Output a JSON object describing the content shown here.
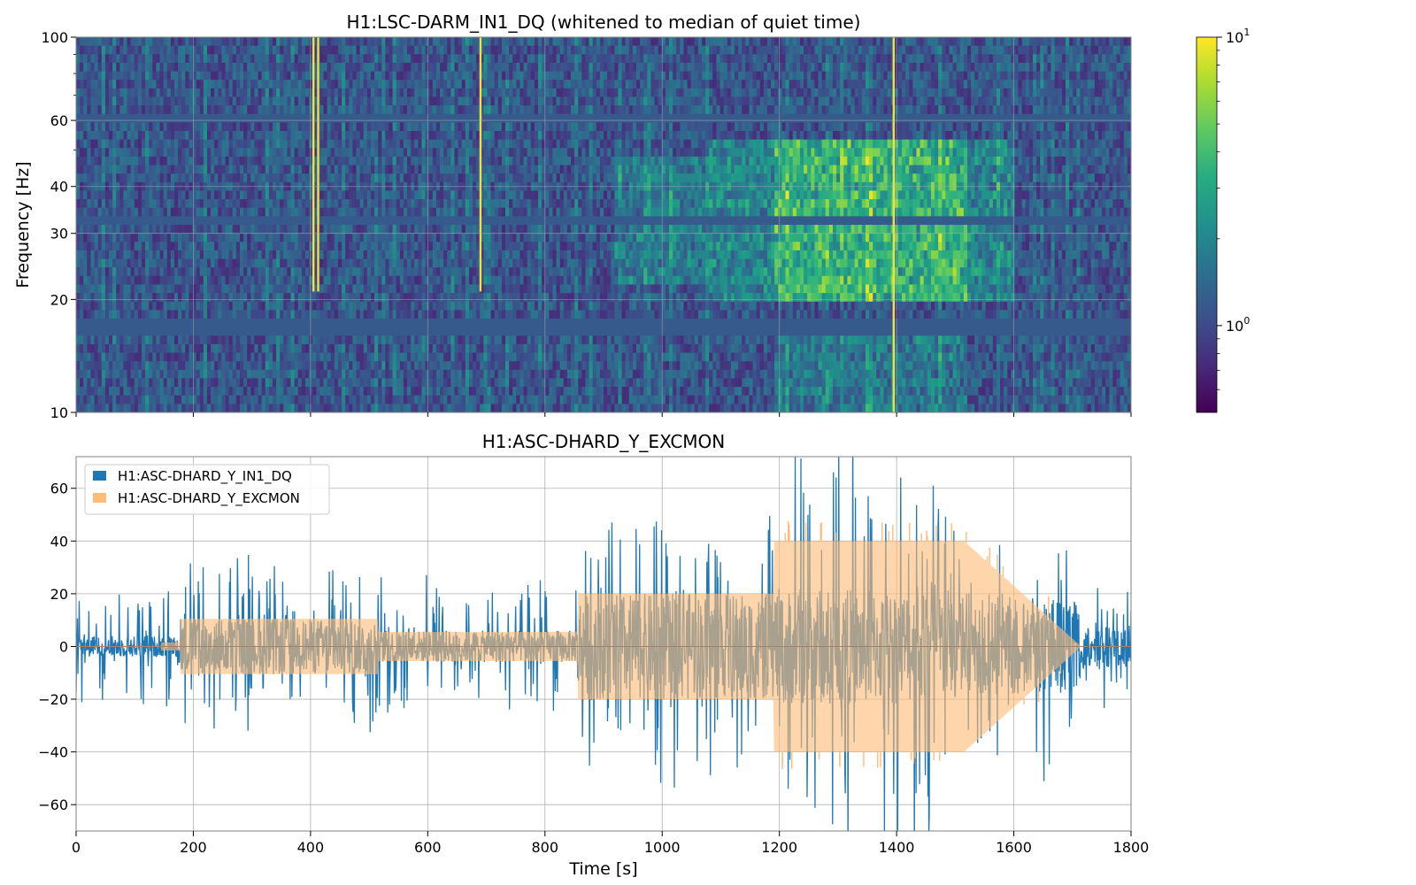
{
  "chart_data": [
    {
      "type": "heatmap",
      "title": "H1:LSC-DARM_IN1_DQ (whitened to median of quiet time)",
      "ylabel": "Frequency [Hz]",
      "xlim": [
        0,
        1800
      ],
      "ylim": [
        10,
        100
      ],
      "yscale": "log",
      "yticks": [
        10,
        20,
        30,
        40,
        60,
        100
      ],
      "ytick_labels": [
        "10",
        "20",
        "30",
        "40",
        "60",
        "100"
      ],
      "xticks": [
        0,
        200,
        400,
        600,
        800,
        1000,
        1200,
        1400,
        1600,
        1800
      ],
      "grid": true,
      "colormap": "viridis",
      "colorbar": {
        "scale": "log",
        "range": [
          0.5,
          10
        ],
        "ticks": [
          {
            "value": 1,
            "base": "10",
            "exp": "0"
          },
          {
            "value": 10,
            "base": "10",
            "exp": "1"
          }
        ]
      },
      "vertical_lines_at": [
        405,
        413,
        690,
        1395
      ],
      "colors": [
        "#440154",
        "#3b528b",
        "#21918c",
        "#5ec962",
        "#fde725"
      ]
    },
    {
      "type": "line",
      "title": "H1:ASC-DHARD_Y_EXCMON",
      "xlabel": "Time [s]",
      "ylabel": "",
      "xlim": [
        0,
        1800
      ],
      "ylim": [
        -70,
        72
      ],
      "xticks": [
        0,
        200,
        400,
        600,
        800,
        1000,
        1200,
        1400,
        1600,
        1800
      ],
      "xtick_labels": [
        "0",
        "200",
        "400",
        "600",
        "800",
        "1000",
        "1200",
        "1400",
        "1600",
        "1800"
      ],
      "yticks": [
        -60,
        -40,
        -20,
        0,
        20,
        40,
        60
      ],
      "ytick_labels": [
        "−60",
        "−40",
        "−20",
        "0",
        "20",
        "40",
        "60"
      ],
      "grid": true,
      "legend_position": "top-left",
      "series": [
        {
          "name": "H1:ASC-DHARD_Y_IN1_DQ",
          "color": "#1f77b4",
          "segments": [
            {
              "t": [
                0,
                175
              ],
              "band": 4,
              "spike": 22
            },
            {
              "t": [
                175,
                515
              ],
              "band": 10.5,
              "spike": 28
            },
            {
              "t": [
                515,
                855
              ],
              "band": 6,
              "spike": 24
            },
            {
              "t": [
                855,
                1190
              ],
              "band": 20,
              "spike": 40
            },
            {
              "t": [
                1190,
                1800
              ],
              "band": 22,
              "spike": 65
            }
          ]
        },
        {
          "name": "H1:ASC-DHARD_Y_EXCMON",
          "color": "#ffbb78",
          "excitation_amplitude": [
            {
              "t": [
                145,
                178
              ],
              "amp": 1.5
            },
            {
              "t": [
                178,
                515
              ],
              "amp": 10.5
            },
            {
              "t": [
                515,
                855
              ],
              "amp": 5.5
            },
            {
              "t": [
                855,
                1190
              ],
              "amp": 20
            },
            {
              "t": [
                1190,
                1515
              ],
              "amp": 40
            },
            {
              "t": [
                1515,
                1715
              ],
              "amp": [
                40,
                0
              ]
            }
          ]
        }
      ]
    }
  ]
}
